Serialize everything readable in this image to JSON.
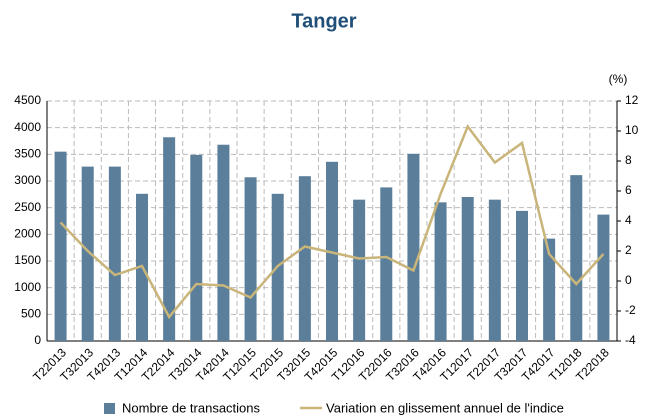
{
  "chart_data": {
    "type": "combo",
    "title": "Tanger",
    "y2_unit_label": "(%)",
    "categories": [
      "T22013",
      "T32013",
      "T42013",
      "T12014",
      "T22014",
      "T32014",
      "T42014",
      "T12015",
      "T22015",
      "T32015",
      "T42015",
      "T12016",
      "T22016",
      "T32016",
      "T42016",
      "T12017",
      "T22017",
      "T32017",
      "T42017",
      "T12018",
      "T22018"
    ],
    "series": [
      {
        "name": "Nombre de transactions",
        "type": "bar",
        "color": "#5b7f9a",
        "values": [
          3550,
          3270,
          3270,
          2760,
          3820,
          3490,
          3680,
          3070,
          2760,
          3090,
          3360,
          2650,
          2880,
          3510,
          2600,
          2700,
          2650,
          2440,
          1920,
          3110,
          2370
        ]
      },
      {
        "name": "Variation en glissement annuel de l'indice",
        "type": "line",
        "axis": "y2",
        "color": "#c9b57a",
        "values": [
          3.9,
          2.0,
          0.4,
          1.0,
          -2.4,
          -0.2,
          -0.3,
          -1.1,
          1.0,
          2.3,
          1.9,
          1.5,
          1.6,
          0.7,
          5.8,
          10.3,
          7.9,
          9.2,
          1.8,
          -0.2,
          1.8
        ]
      }
    ],
    "ylim": [
      0,
      4500
    ],
    "yticks": [
      0,
      500,
      1000,
      1500,
      2000,
      2500,
      3000,
      3500,
      4000,
      4500
    ],
    "y2lim": [
      -4,
      12
    ],
    "y2ticks": [
      -4,
      -2,
      0,
      2,
      4,
      6,
      8,
      10,
      12
    ],
    "grid": true
  }
}
